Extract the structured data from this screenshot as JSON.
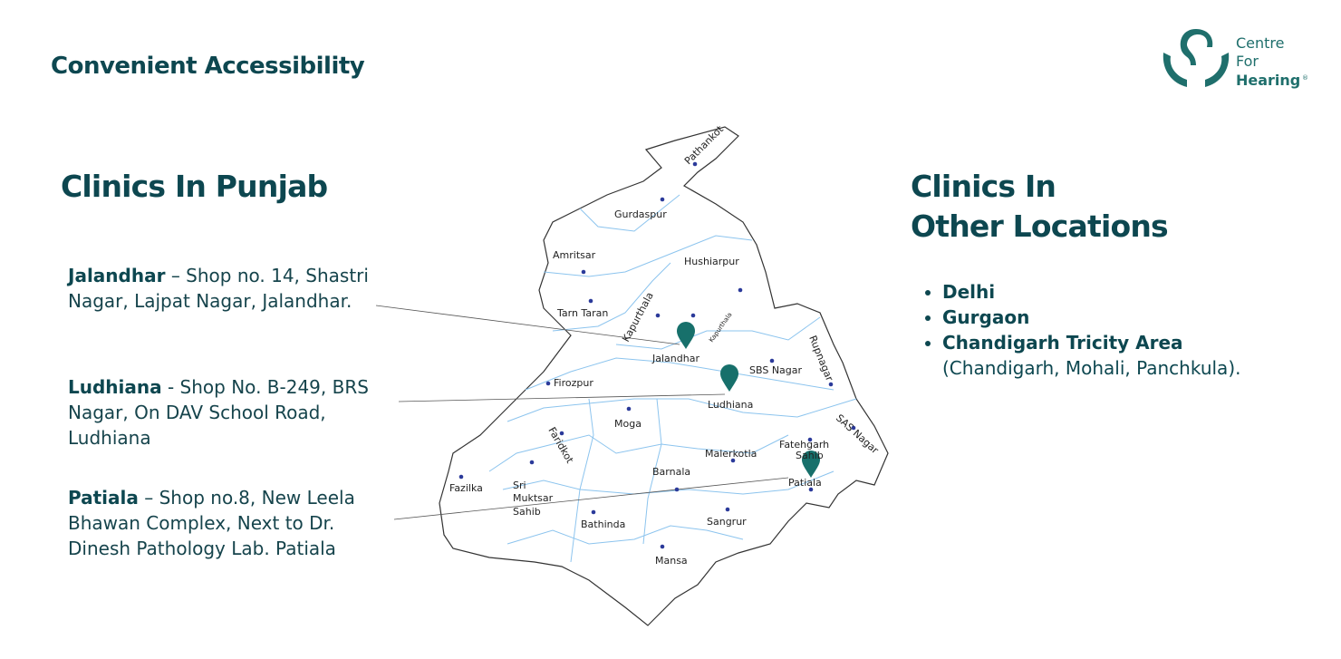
{
  "header": {
    "title": "Convenient Accessibility"
  },
  "logo": {
    "lines": [
      "Centre",
      "For",
      "Hearing"
    ],
    "mark": "®"
  },
  "punjab": {
    "title": "Clinics In Punjab",
    "clinics": [
      {
        "name": "Jalandhar",
        "address": "– Shop no. 14, Shastri Nagar, Lajpat Nagar, Jalandhar."
      },
      {
        "name": "Ludhiana",
        "address": "- Shop No. B-249, BRS Nagar, On DAV School Road, Ludhiana"
      },
      {
        "name": "Patiala",
        "address": "– Shop no.8, New Leela Bhawan Complex, Next to Dr. Dinesh Pathology Lab. Patiala"
      }
    ]
  },
  "other": {
    "title_lines": [
      "Clinics In",
      "Other Locations"
    ],
    "locations": [
      "Delhi",
      "Gurgaon",
      "Chandigarh Tricity Area"
    ],
    "note": "(Chandigarh, Mohali, Panchkula)."
  },
  "map": {
    "districts": [
      "Pathankot",
      "Gurdaspur",
      "Amritsar",
      "Hushiarpur",
      "Tarn Taran",
      "Kapurthala",
      "Kapurthala",
      "Jalandhar",
      "SBS Nagar",
      "Rupnagar",
      "Firozpur",
      "Ludhiana",
      "Moga",
      "Faridkot",
      "SAS Nagar",
      [
        "Fatehgarh",
        "Sahib"
      ],
      "Malerkotla",
      "Barnala",
      "Patiala",
      "Fazilka",
      [
        "Sri",
        "Muktsar",
        "Sahib"
      ],
      "Bathinda",
      "Sangrur",
      "Mansa"
    ]
  }
}
